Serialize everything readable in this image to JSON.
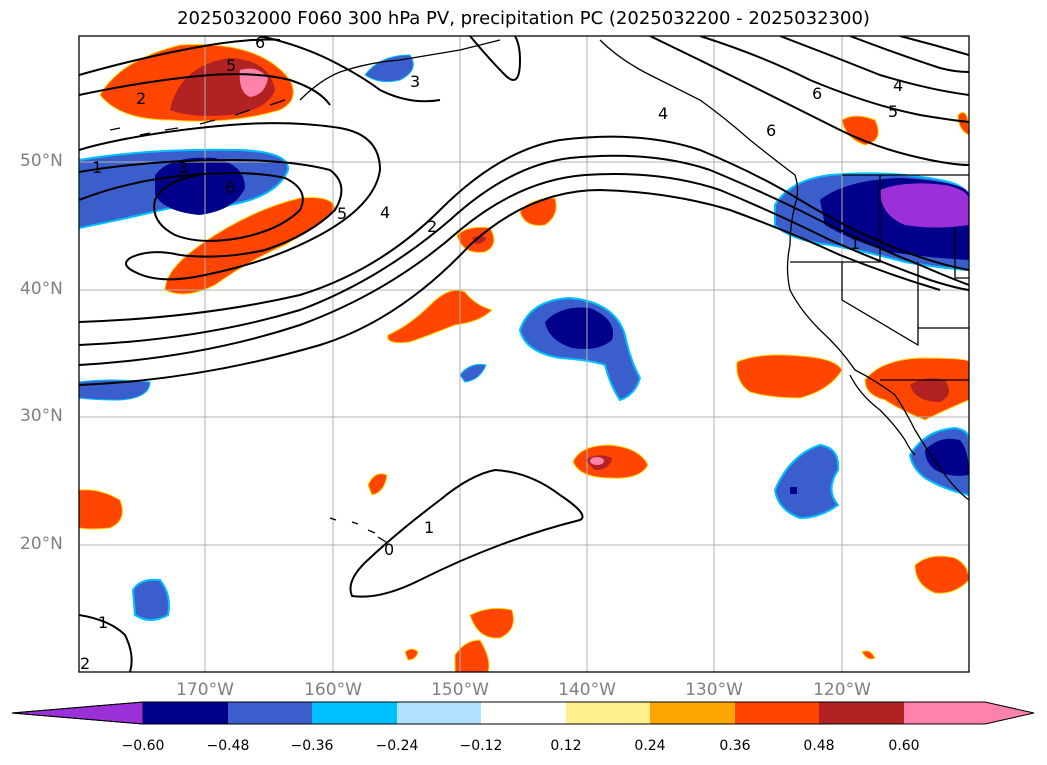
{
  "title": "2025032000 F060 300 hPa PV, precipitation PC (2025032200 - 2025032300)",
  "map": {
    "lat_labels": [
      "50°N",
      "40°N",
      "30°N",
      "20°N"
    ],
    "lon_labels": [
      "170°W",
      "160°W",
      "150°W",
      "140°W",
      "130°W",
      "120°W"
    ],
    "contour_labels": [
      "6",
      "5",
      "2",
      "1",
      "3",
      "6",
      "3",
      "4",
      "5",
      "6",
      "4",
      "6",
      "5",
      "4",
      "2",
      "1",
      "1",
      "0",
      "1",
      "2"
    ]
  },
  "colorbar": {
    "ticks": [
      "−0.60",
      "−0.48",
      "−0.36",
      "−0.24",
      "−0.12",
      "0.12",
      "0.24",
      "0.36",
      "0.48",
      "0.60"
    ],
    "colors": [
      "#9b30d9",
      "#00008b",
      "#3a5fcd",
      "#00bfff",
      "#b0e2ff",
      "#ffffff",
      "#fff08c",
      "#ffa500",
      "#ff4500",
      "#b22222",
      "#ff82ab"
    ]
  }
}
